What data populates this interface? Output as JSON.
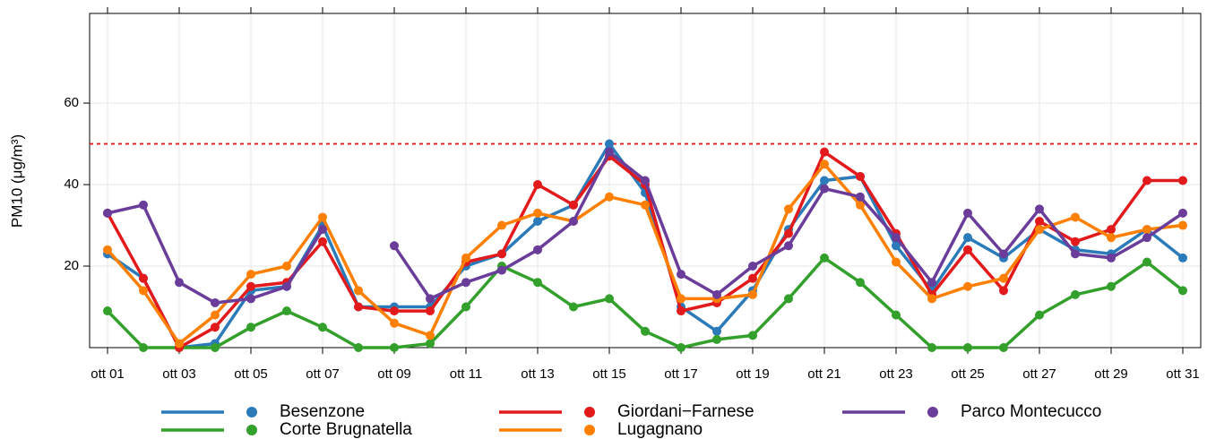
{
  "chart_data": {
    "type": "line",
    "y_label": "PM10 (μg/m³)",
    "categories": [
      "ott 01",
      null,
      "ott 03",
      null,
      "ott 05",
      null,
      "ott 07",
      null,
      "ott 09",
      null,
      "ott 11",
      null,
      "ott 13",
      null,
      "ott 15",
      null,
      "ott 17",
      null,
      "ott 19",
      null,
      "ott 21",
      null,
      "ott 23",
      null,
      "ott 25",
      null,
      "ott 27",
      null,
      "ott 29",
      null,
      "ott 31"
    ],
    "series": [
      {
        "name": "Besenzone",
        "color": "#2b7bba",
        "values": [
          23,
          17,
          0,
          1,
          14,
          15,
          30,
          10,
          10,
          10,
          20,
          23,
          31,
          35,
          50,
          38,
          10,
          4,
          14,
          29,
          41,
          42,
          25,
          14,
          27,
          22,
          29,
          24,
          23,
          29,
          22
        ]
      },
      {
        "name": "Corte Brugnatella",
        "color": "#33a02c",
        "values": [
          9,
          0,
          0,
          0,
          5,
          9,
          5,
          0,
          0,
          1,
          10,
          20,
          16,
          10,
          12,
          4,
          0,
          2,
          3,
          12,
          22,
          16,
          8,
          0,
          0,
          0,
          8,
          13,
          15,
          21,
          14
        ]
      },
      {
        "name": "Giordani−Farnese",
        "color": "#e31a1c",
        "values": [
          33,
          17,
          0,
          5,
          15,
          16,
          26,
          10,
          9,
          9,
          21,
          23,
          40,
          35,
          47,
          40,
          9,
          11,
          17,
          28,
          48,
          42,
          28,
          13,
          24,
          14,
          31,
          26,
          29,
          41,
          41
        ]
      },
      {
        "name": "Lugagnano",
        "color": "#ff7f00",
        "values": [
          24,
          14,
          1,
          8,
          18,
          20,
          32,
          14,
          6,
          3,
          22,
          30,
          33,
          31,
          37,
          35,
          12,
          12,
          13,
          34,
          45,
          35,
          21,
          12,
          15,
          17,
          29,
          32,
          27,
          29,
          30
        ]
      },
      {
        "name": "Parco Montecucco",
        "color": "#6a3d9a",
        "values": [
          33,
          35,
          16,
          11,
          12,
          15,
          29,
          null,
          25,
          12,
          16,
          19,
          24,
          31,
          48,
          41,
          18,
          13,
          20,
          25,
          39,
          37,
          27,
          16,
          33,
          23,
          34,
          23,
          22,
          27,
          33
        ]
      }
    ],
    "ylim": [
      0,
      82
    ],
    "yticks": [
      20,
      40,
      60
    ],
    "grid": true,
    "hline": {
      "value": 50,
      "color": "#e31a1c"
    },
    "legend": "bottom"
  }
}
